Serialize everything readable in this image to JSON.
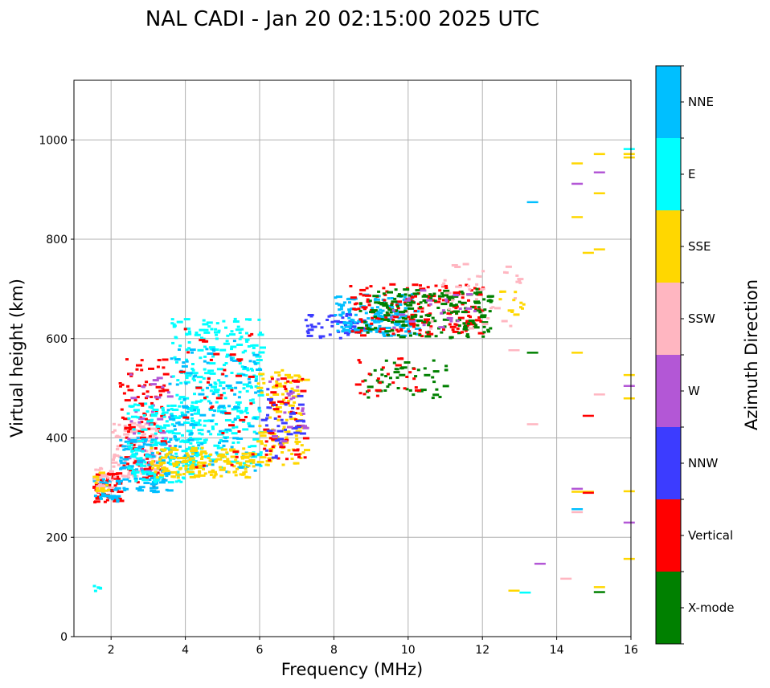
{
  "chart_data": {
    "type": "scatter",
    "title": "NAL CADI - Jan 20 02:15:00 2025 UTC",
    "xlabel": "Frequency (MHz)",
    "ylabel": "Virtual height (km)",
    "xlim": [
      1,
      16
    ],
    "ylim": [
      0,
      1120
    ],
    "xticks": [
      2,
      4,
      6,
      8,
      10,
      12,
      14,
      16
    ],
    "yticks": [
      0,
      200,
      400,
      600,
      800,
      1000
    ],
    "grid": true,
    "colorbar": {
      "title": "Azimuth Direction",
      "categories": [
        {
          "name": "X-mode",
          "color": "#008000"
        },
        {
          "name": "Vertical",
          "color": "#ff0000"
        },
        {
          "name": "NNW",
          "color": "#3c3cff"
        },
        {
          "name": "W",
          "color": "#b357d6"
        },
        {
          "name": "SSW",
          "color": "#ffb6c1"
        },
        {
          "name": "SSE",
          "color": "#ffd700"
        },
        {
          "name": "E",
          "color": "#00ffff"
        },
        {
          "name": "NNE",
          "color": "#00bfff"
        }
      ]
    },
    "clusters": [
      {
        "category": "Vertical",
        "x": [
          1.5,
          2.2
        ],
        "y": [
          270,
          330
        ],
        "n": 60
      },
      {
        "category": "NNE",
        "x": [
          1.5,
          2.2
        ],
        "y": [
          270,
          320
        ],
        "n": 40
      },
      {
        "category": "SSW",
        "x": [
          1.5,
          2.0
        ],
        "y": [
          290,
          340
        ],
        "n": 25
      },
      {
        "category": "SSE",
        "x": [
          1.5,
          2.0
        ],
        "y": [
          290,
          330
        ],
        "n": 15
      },
      {
        "category": "SSW",
        "x": [
          2.0,
          3.2
        ],
        "y": [
          320,
          430
        ],
        "n": 110
      },
      {
        "category": "Vertical",
        "x": [
          2.2,
          3.4
        ],
        "y": [
          300,
          560
        ],
        "n": 120
      },
      {
        "category": "W",
        "x": [
          2.4,
          3.6
        ],
        "y": [
          330,
          530
        ],
        "n": 45
      },
      {
        "category": "NNE",
        "x": [
          2.2,
          3.6
        ],
        "y": [
          290,
          400
        ],
        "n": 100
      },
      {
        "category": "E",
        "x": [
          2.4,
          4.2
        ],
        "y": [
          310,
          470
        ],
        "n": 160
      },
      {
        "category": "E",
        "x": [
          3.6,
          6.0
        ],
        "y": [
          340,
          640
        ],
        "n": 320
      },
      {
        "category": "NNE",
        "x": [
          3.5,
          6.0
        ],
        "y": [
          330,
          600
        ],
        "n": 130
      },
      {
        "category": "SSE",
        "x": [
          3.0,
          5.8
        ],
        "y": [
          320,
          380
        ],
        "n": 170
      },
      {
        "category": "Vertical",
        "x": [
          3.8,
          5.8
        ],
        "y": [
          340,
          620
        ],
        "n": 40
      },
      {
        "category": "SSE",
        "x": [
          5.9,
          7.2
        ],
        "y": [
          340,
          540
        ],
        "n": 110
      },
      {
        "category": "Vertical",
        "x": [
          6.0,
          7.2
        ],
        "y": [
          350,
          520
        ],
        "n": 45
      },
      {
        "category": "NNW",
        "x": [
          6.0,
          7.2
        ],
        "y": [
          360,
          500
        ],
        "n": 40
      },
      {
        "category": "W",
        "x": [
          6.0,
          7.2
        ],
        "y": [
          380,
          520
        ],
        "n": 20
      },
      {
        "category": "NNW",
        "x": [
          7.2,
          8.8
        ],
        "y": [
          600,
          650
        ],
        "n": 45
      },
      {
        "category": "NNE",
        "x": [
          8.0,
          10.2
        ],
        "y": [
          605,
          690
        ],
        "n": 160
      },
      {
        "category": "Vertical",
        "x": [
          8.4,
          12.0
        ],
        "y": [
          605,
          710
        ],
        "n": 170
      },
      {
        "category": "X-mode",
        "x": [
          8.6,
          12.2
        ],
        "y": [
          600,
          700
        ],
        "n": 180
      },
      {
        "category": "SSW",
        "x": [
          10.5,
          13.0
        ],
        "y": [
          620,
          750
        ],
        "n": 40
      },
      {
        "category": "W",
        "x": [
          9.5,
          11.8
        ],
        "y": [
          620,
          700
        ],
        "n": 25
      },
      {
        "category": "X-mode",
        "x": [
          8.8,
          11.0
        ],
        "y": [
          480,
          560
        ],
        "n": 50
      },
      {
        "category": "Vertical",
        "x": [
          8.5,
          10.2
        ],
        "y": [
          480,
          560
        ],
        "n": 25
      },
      {
        "category": "SSE",
        "x": [
          12.0,
          13.2
        ],
        "y": [
          640,
          700
        ],
        "n": 12
      },
      {
        "category": "E",
        "x": [
          1.5,
          1.7
        ],
        "y": [
          90,
          105
        ],
        "n": 6
      }
    ],
    "segments": [
      {
        "category": "SSE",
        "x": 15.8,
        "y": 972
      },
      {
        "category": "SSE",
        "x": 15.8,
        "y": 965
      },
      {
        "category": "E",
        "x": 15.8,
        "y": 982
      },
      {
        "category": "SSE",
        "x": 15.0,
        "y": 972
      },
      {
        "category": "SSE",
        "x": 14.4,
        "y": 953
      },
      {
        "category": "W",
        "x": 15.0,
        "y": 935
      },
      {
        "category": "W",
        "x": 14.4,
        "y": 912
      },
      {
        "category": "SSE",
        "x": 15.0,
        "y": 893
      },
      {
        "category": "NNE",
        "x": 13.2,
        "y": 875
      },
      {
        "category": "SSE",
        "x": 14.4,
        "y": 845
      },
      {
        "category": "SSE",
        "x": 15.0,
        "y": 780
      },
      {
        "category": "SSE",
        "x": 14.7,
        "y": 773
      },
      {
        "category": "X-mode",
        "x": 13.2,
        "y": 572
      },
      {
        "category": "SSE",
        "x": 14.4,
        "y": 572
      },
      {
        "category": "SSW",
        "x": 12.7,
        "y": 577
      },
      {
        "category": "SSE",
        "x": 15.8,
        "y": 527
      },
      {
        "category": "W",
        "x": 15.8,
        "y": 505
      },
      {
        "category": "SSE",
        "x": 15.8,
        "y": 480
      },
      {
        "category": "SSW",
        "x": 15.0,
        "y": 488
      },
      {
        "category": "Vertical",
        "x": 14.7,
        "y": 445
      },
      {
        "category": "SSW",
        "x": 13.2,
        "y": 428
      },
      {
        "category": "W",
        "x": 14.4,
        "y": 298
      },
      {
        "category": "SSE",
        "x": 14.7,
        "y": 292
      },
      {
        "category": "Vertical",
        "x": 14.7,
        "y": 290
      },
      {
        "category": "SSE",
        "x": 14.4,
        "y": 292
      },
      {
        "category": "SSE",
        "x": 15.8,
        "y": 293
      },
      {
        "category": "NNE",
        "x": 14.4,
        "y": 257
      },
      {
        "category": "SSW",
        "x": 14.4,
        "y": 251
      },
      {
        "category": "W",
        "x": 15.8,
        "y": 230
      },
      {
        "category": "SSE",
        "x": 15.8,
        "y": 157
      },
      {
        "category": "W",
        "x": 13.4,
        "y": 147
      },
      {
        "category": "SSW",
        "x": 14.1,
        "y": 117
      },
      {
        "category": "SSE",
        "x": 15.0,
        "y": 100
      },
      {
        "category": "X-mode",
        "x": 15.0,
        "y": 90
      },
      {
        "category": "SSE",
        "x": 12.7,
        "y": 93
      },
      {
        "category": "E",
        "x": 13.0,
        "y": 89
      }
    ]
  }
}
